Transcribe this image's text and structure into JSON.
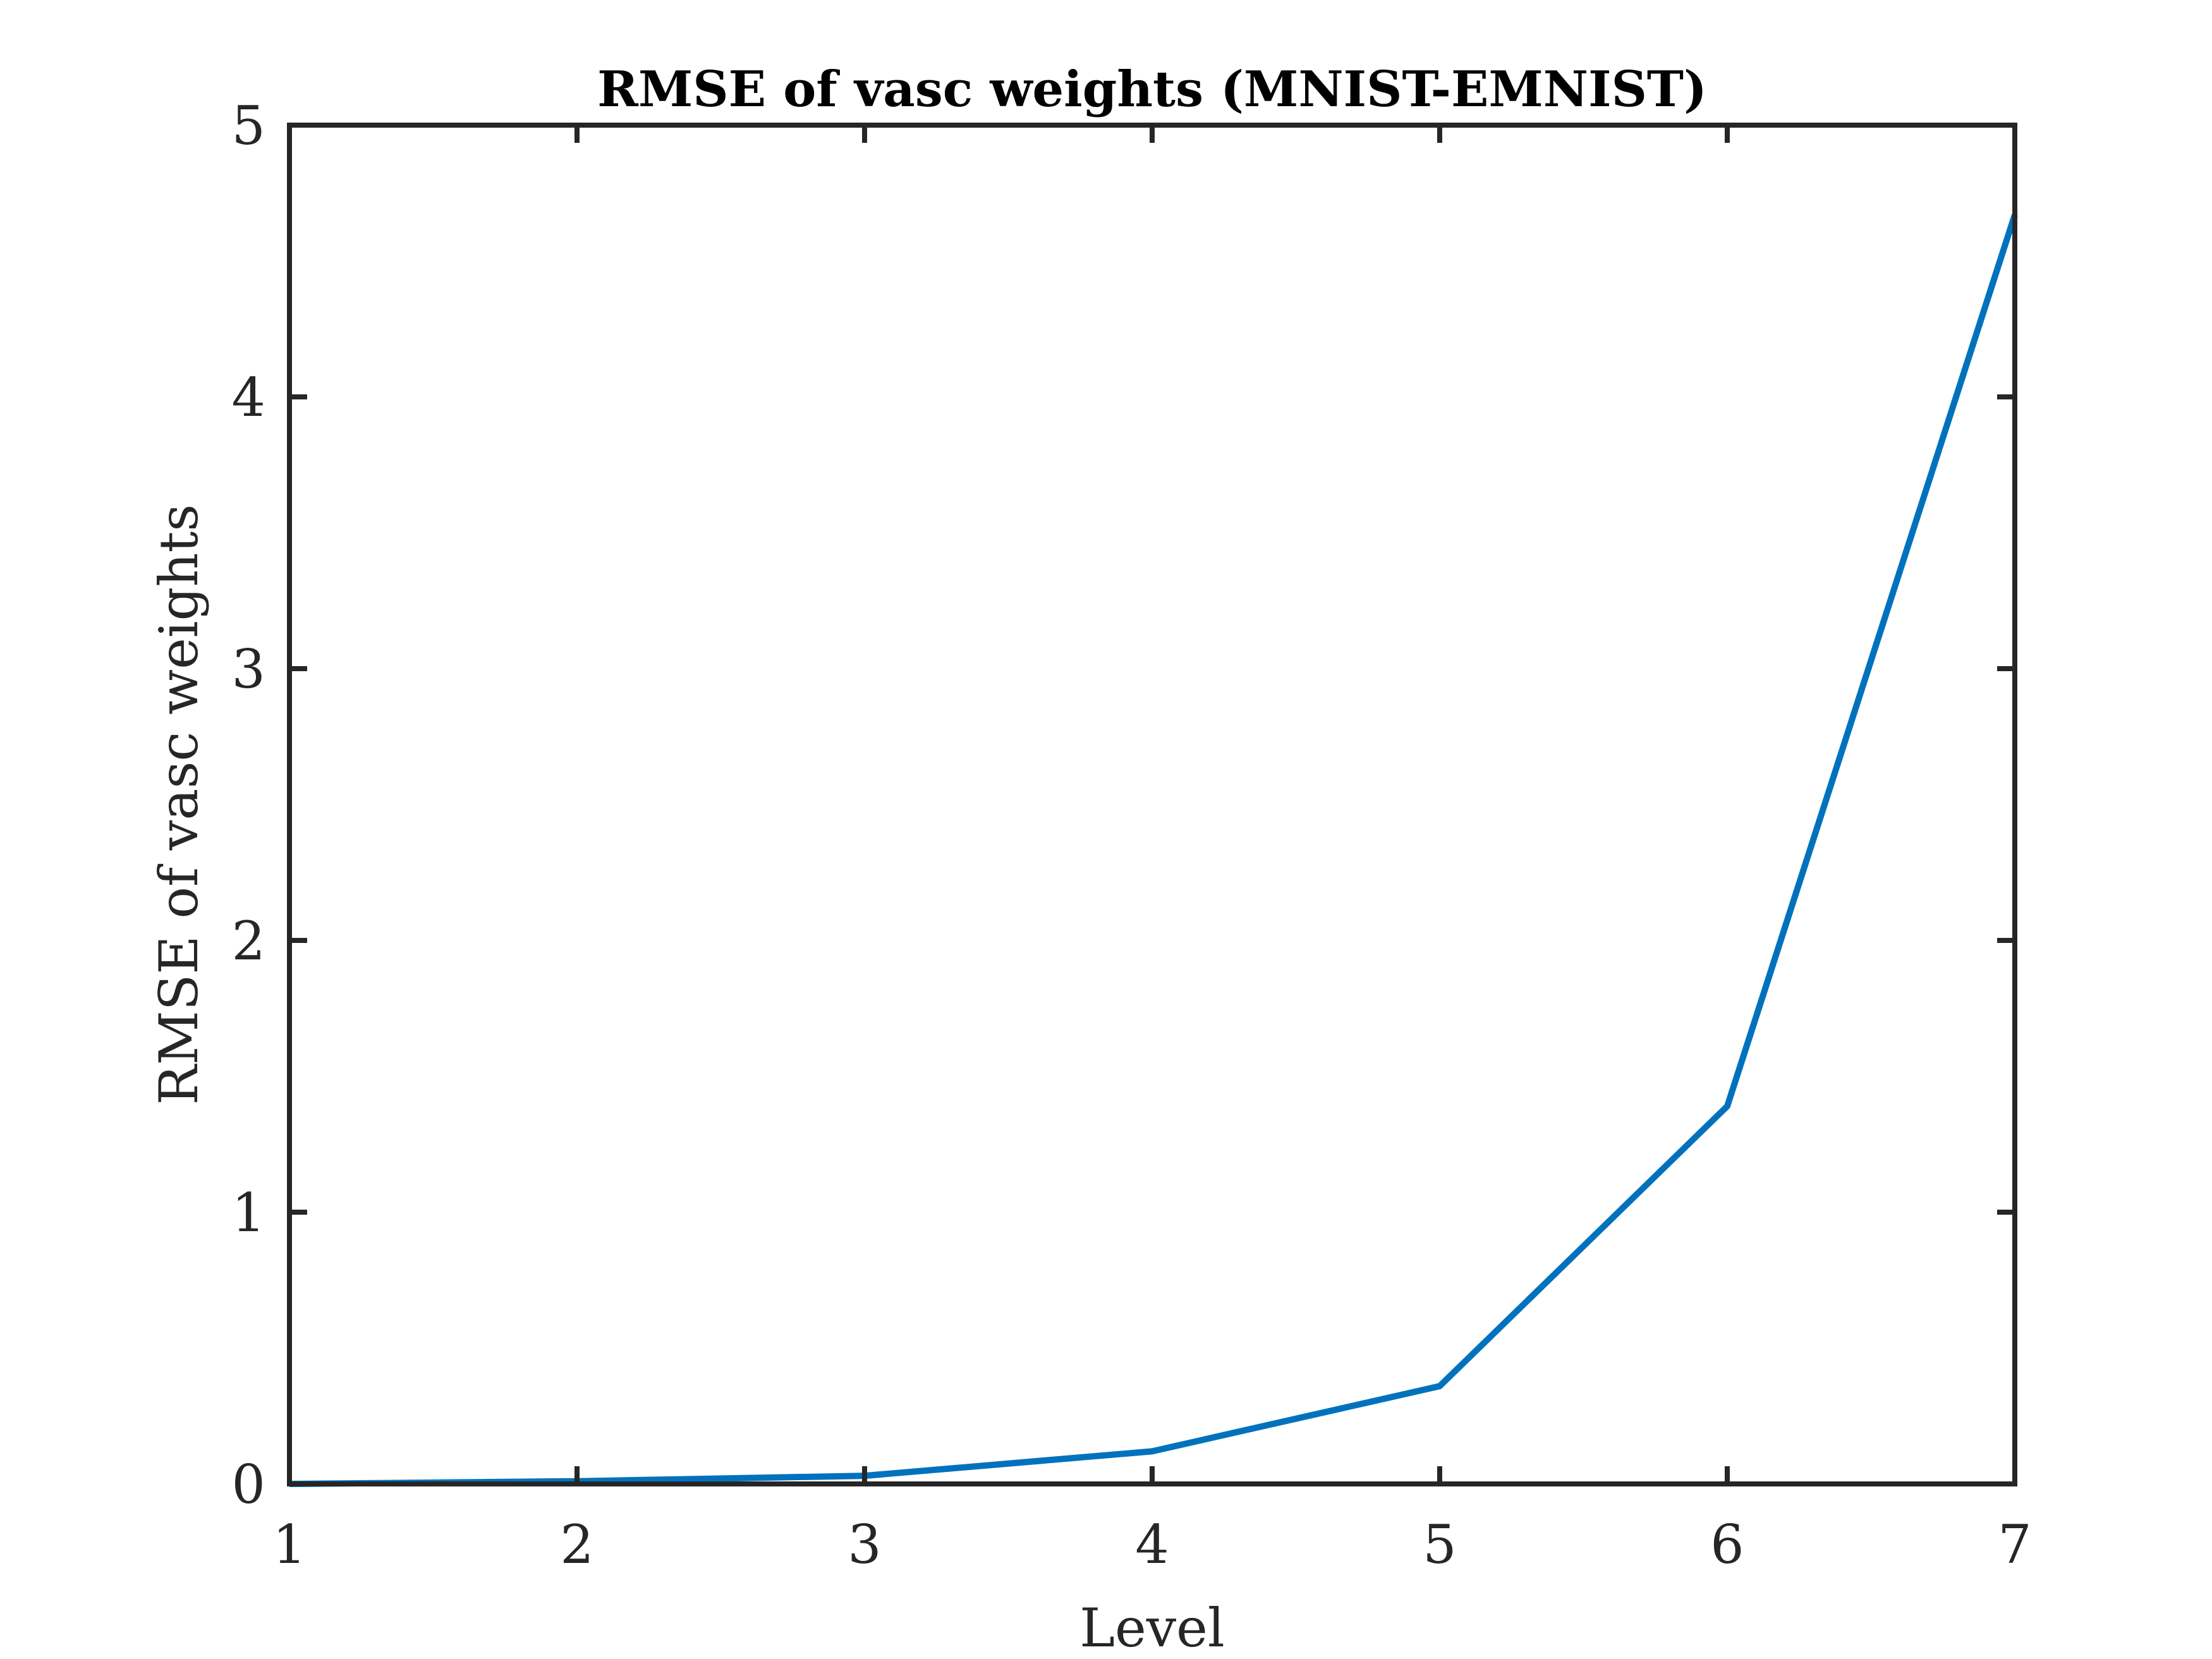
{
  "chart_data": {
    "type": "line",
    "title": "RMSE of vasc weights (MNIST-EMNIST)",
    "xlabel": "Level",
    "ylabel": "RMSE of vasc weights",
    "xlim": [
      1,
      7
    ],
    "ylim": [
      0,
      5
    ],
    "xticks": [
      "1",
      "2",
      "3",
      "4",
      "5",
      "6",
      "7"
    ],
    "yticks": [
      "0",
      "1",
      "2",
      "3",
      "4",
      "5"
    ],
    "grid": false,
    "series": [
      {
        "color": "#0072BD",
        "x": [
          1,
          2,
          3,
          4,
          5,
          6,
          7
        ],
        "y": [
          0.0,
          0.01,
          0.03,
          0.12,
          0.36,
          1.39,
          4.67
        ]
      }
    ]
  }
}
